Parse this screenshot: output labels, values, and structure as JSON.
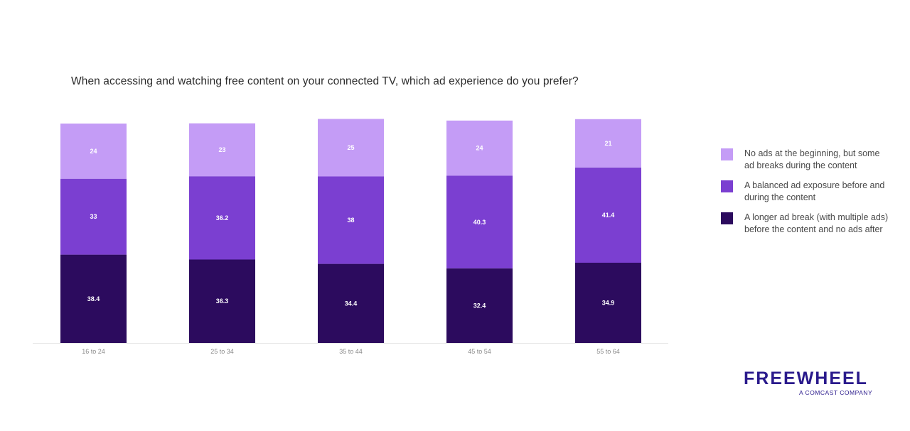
{
  "chart_data": {
    "type": "bar",
    "stacked": true,
    "title": "When accessing and watching free content on your connected TV, which ad experience do you prefer?",
    "categories": [
      "16 to 24",
      "25 to 34",
      "35 to 44",
      "45 to 54",
      "55 to 64"
    ],
    "series": [
      {
        "name": "A longer ad break (with multiple ads) before the content and no ads after",
        "color": "#2c0b5e",
        "values": [
          38.4,
          36.3,
          34.4,
          32.4,
          34.9
        ]
      },
      {
        "name": "A balanced ad exposure before and during the content",
        "color": "#7b3fd1",
        "values": [
          33,
          36.2,
          38,
          40.3,
          41.4
        ]
      },
      {
        "name": "No ads at the beginning, but some ad breaks during the content",
        "color": "#c49cf6",
        "values": [
          24,
          23,
          25,
          24,
          21
        ]
      }
    ],
    "legend_position": "right",
    "grid": false
  },
  "legend": [
    {
      "label": "No ads at the beginning, but some ad breaks during the content",
      "color": "#c49cf6"
    },
    {
      "label": "A balanced ad exposure before and during the content",
      "color": "#7b3fd1"
    },
    {
      "label": "A longer ad break (with multiple ads) before the content and no ads after",
      "color": "#2c0b5e"
    }
  ],
  "brand": {
    "name": "FREEWHEEL",
    "tagline": "A COMCAST COMPANY",
    "color": "#2a1a8c"
  }
}
